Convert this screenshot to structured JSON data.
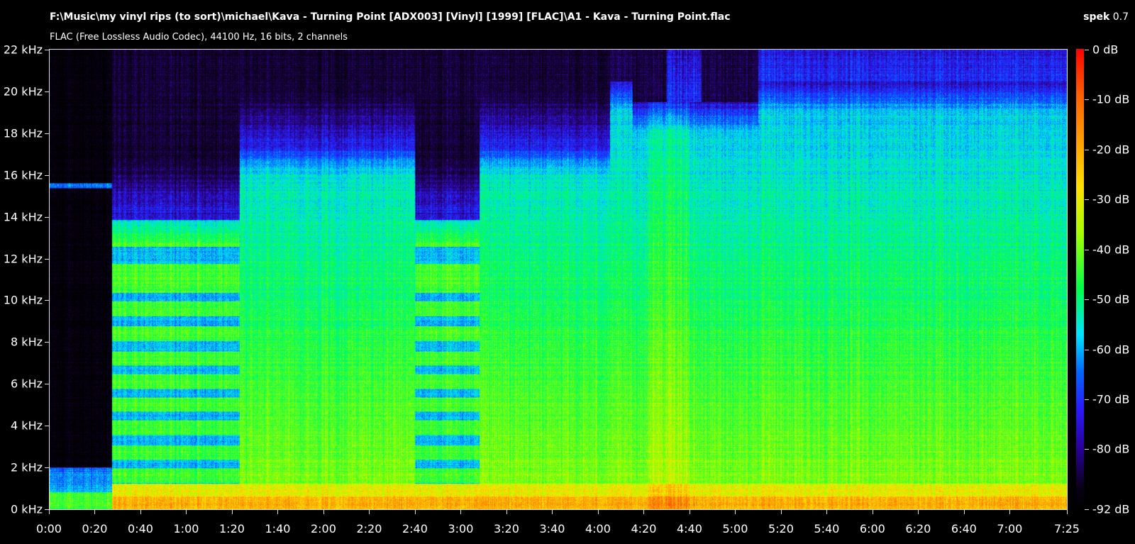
{
  "header": {
    "file_path": "F:\\Music\\my vinyl rips (to sort)\\michael\\Kava - Turning Point [ADX003] [Vinyl] [1999] [FLAC]\\A1 - Kava - Turning Point.flac",
    "audio_info": "FLAC (Free Lossless Audio Codec), 44100 Hz, 16 bits, 2 channels",
    "app_name": "spek",
    "app_version": "0.7"
  },
  "axes": {
    "frequency_ticks": [
      "22 kHz",
      "20 kHz",
      "18 kHz",
      "16 kHz",
      "14 kHz",
      "12 kHz",
      "10 kHz",
      "8 kHz",
      "6 kHz",
      "4 kHz",
      "2 kHz",
      "0 kHz"
    ],
    "time_ticks": [
      "0:00",
      "0:20",
      "0:40",
      "1:00",
      "1:20",
      "1:40",
      "2:00",
      "2:20",
      "2:40",
      "3:00",
      "3:20",
      "3:40",
      "4:00",
      "4:20",
      "4:40",
      "5:00",
      "5:20",
      "5:40",
      "6:00",
      "6:20",
      "6:40",
      "7:00",
      "7:25"
    ],
    "db_ticks": [
      "0 dB",
      "-10 dB",
      "-20 dB",
      "-30 dB",
      "-40 dB",
      "-50 dB",
      "-60 dB",
      "-70 dB",
      "-80 dB",
      "-92 dB"
    ],
    "frequency_range_khz": [
      0,
      22
    ],
    "time_range_seconds": [
      0,
      445
    ],
    "db_range": [
      -92,
      0
    ]
  },
  "colors": {
    "background": "#000000",
    "text": "#ffffff",
    "palette": [
      "#000000",
      "#0a0018",
      "#2a0093",
      "#2b1aff",
      "#0068ff",
      "#00e4ff",
      "#00ff4a",
      "#a6ff00",
      "#ffe000",
      "#ff9f00",
      "#ff6000",
      "#ff0000"
    ]
  }
}
